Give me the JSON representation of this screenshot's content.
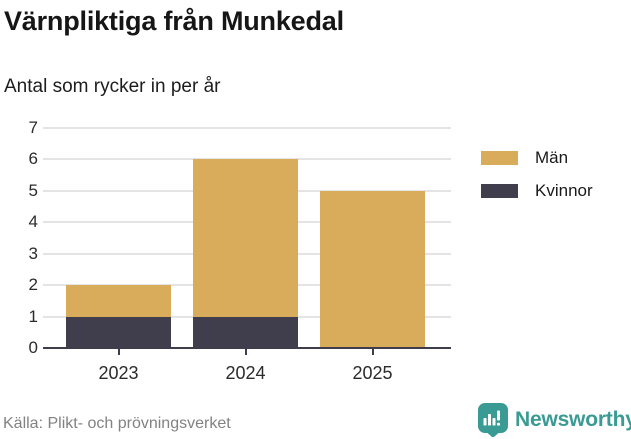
{
  "header": {
    "title": "Värnpliktiga från Munkedal",
    "subtitle": "Antal som rycker in per år"
  },
  "chart_data": {
    "type": "bar",
    "stacked": true,
    "title": "Värnpliktiga från Munkedal",
    "subtitle": "Antal som rycker in per år",
    "categories": [
      "2023",
      "2024",
      "2025"
    ],
    "series": [
      {
        "name": "Män",
        "color": "#d9ac5c",
        "values": [
          1,
          5,
          5
        ]
      },
      {
        "name": "Kvinnor",
        "color": "#403e4d",
        "values": [
          1,
          1,
          0
        ]
      }
    ],
    "stack_totals": [
      2,
      6,
      5
    ],
    "xlabel": "",
    "ylabel": "",
    "ylim": [
      0,
      7
    ],
    "yticks": [
      0,
      1,
      2,
      3,
      4,
      5,
      6,
      7
    ],
    "grid": true,
    "legend_position": "right",
    "colors": {
      "axis": "#3f3d4c",
      "grid": "#e4e4e4",
      "tick_label": "#2b2b2b"
    }
  },
  "footer": {
    "source": "Källa: Plikt- och prövningsverket",
    "brand": "Newsworthy",
    "brand_color": "#3a9b94"
  },
  "icons": {
    "brand_icon": "bar-chart-speech-bubble-icon"
  }
}
